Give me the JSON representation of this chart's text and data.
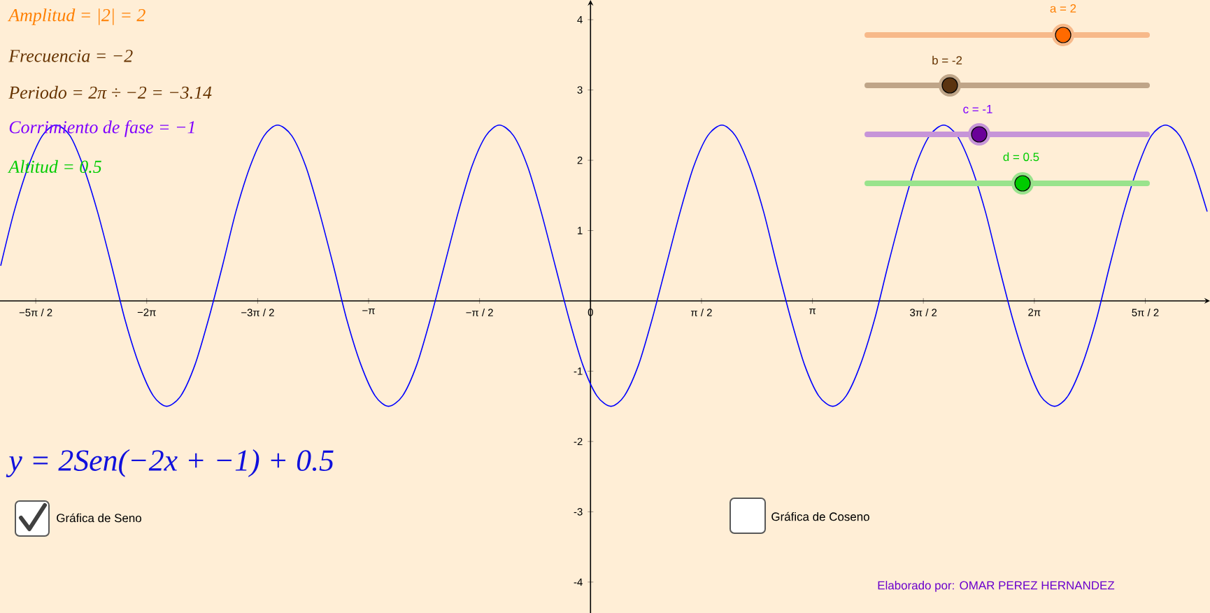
{
  "chart_data": {
    "type": "line",
    "x": [
      -8.35,
      -8.16,
      -7.96,
      -7.76,
      -7.57,
      -7.37,
      -7.18,
      -6.98,
      -6.78,
      -6.59,
      -6.39,
      -6.19,
      -6.0,
      -5.8,
      -5.6,
      -5.41,
      -5.21,
      -5.02,
      -4.82,
      -4.62,
      -4.43,
      -4.23,
      -4.03,
      -3.84,
      -3.64,
      -3.45,
      -3.25,
      -3.05,
      -2.86,
      -2.66,
      -2.46,
      -2.27,
      -2.07,
      -1.87,
      -1.68,
      -1.48,
      -1.29,
      -1.09,
      -0.89,
      -0.7,
      -0.5,
      -0.3,
      -0.11,
      0.09,
      0.29,
      0.48,
      0.68,
      0.87,
      1.07,
      1.27,
      1.46,
      1.66,
      1.86,
      2.05,
      2.25,
      2.45,
      2.64,
      2.84,
      3.03,
      3.23,
      3.43,
      3.62,
      3.82,
      4.02,
      4.21,
      4.41,
      4.6,
      4.8,
      5.0,
      5.19,
      5.39,
      5.59,
      5.78,
      5.98,
      6.18,
      6.37,
      6.57,
      6.76,
      6.96,
      7.16,
      7.35,
      7.55,
      7.75,
      7.94,
      8.14,
      8.34,
      8.53,
      8.73
    ],
    "series": [
      {
        "color": "#0000ff",
        "values": [
          0.5,
          1.27,
          1.91,
          2.35,
          2.5,
          2.35,
          1.91,
          1.27,
          0.5,
          -0.27,
          -0.91,
          -1.35,
          -1.5,
          -1.35,
          -0.91,
          -0.27,
          0.5,
          1.27,
          1.91,
          2.35,
          2.5,
          2.35,
          1.91,
          1.27,
          0.5,
          -0.27,
          -0.91,
          -1.35,
          -1.5,
          -1.35,
          -0.91,
          -0.27,
          0.5,
          1.27,
          1.91,
          2.35,
          2.5,
          2.35,
          1.91,
          1.27,
          0.5,
          -0.27,
          -0.91,
          -1.35,
          -1.5,
          -1.35,
          -0.91,
          -0.27,
          0.5,
          1.27,
          1.91,
          2.35,
          2.5,
          2.35,
          1.91,
          1.27,
          0.5,
          -0.27,
          -0.91,
          -1.35,
          -1.5,
          -1.35,
          -0.91,
          -0.27,
          0.5,
          1.27,
          1.91,
          2.35,
          2.5,
          2.35,
          1.91,
          1.27,
          0.5,
          -0.27,
          -0.91,
          -1.35,
          -1.5,
          -1.35,
          -0.91,
          -0.27,
          0.5,
          1.27,
          1.91,
          2.35,
          2.5,
          2.35,
          1.91,
          1.27
        ]
      }
    ],
    "xlim": [
      -8.36,
      8.77
    ],
    "ylim": [
      -4.44,
      4.28
    ],
    "xticks": [
      {
        "value": -7.854,
        "label": "−5π / 2"
      },
      {
        "value": -6.283,
        "label": "−2π"
      },
      {
        "value": -4.712,
        "label": "−3π / 2"
      },
      {
        "value": -3.142,
        "label": "−π"
      },
      {
        "value": -1.571,
        "label": "−π / 2"
      },
      {
        "value": 0,
        "label": "0"
      },
      {
        "value": 1.571,
        "label": "π / 2"
      },
      {
        "value": 3.142,
        "label": "π"
      },
      {
        "value": 4.712,
        "label": "3π / 2"
      },
      {
        "value": 6.283,
        "label": "2π"
      },
      {
        "value": 7.854,
        "label": "5π / 2"
      }
    ],
    "yticks": [
      -4,
      -3,
      -2,
      -1,
      1,
      2,
      3,
      4
    ],
    "marker": "none",
    "line_style": "solid",
    "grid": false,
    "annotations": [
      "Amplitud = |2| = 2",
      "Frecuencia = −2",
      "Periodo = 2π ÷ −2 = −3.14",
      "Corrimiento de fase = −1",
      "Altitud = 0.5",
      "a = 2",
      "b = -2",
      "c = -1",
      "d = 0.5",
      "y = 2Sen(−2x + −1) + 0.5",
      "Gráfica de Seno",
      "Gráfica de Coseno",
      "Elaborado por: OMAR PEREZ HERNANDEZ"
    ]
  }
}
